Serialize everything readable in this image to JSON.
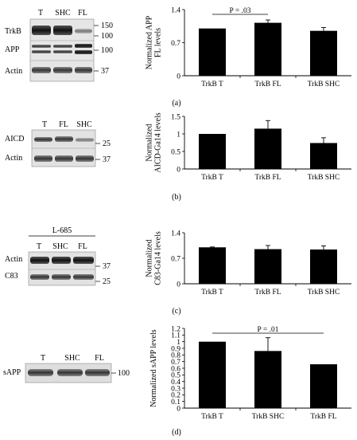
{
  "panels": [
    {
      "label": "(a)",
      "blot": {
        "lanes": [
          "T",
          "SHC",
          "FL"
        ],
        "rows": [
          "TrkB",
          "APP",
          "Actin"
        ],
        "markers": [
          "150",
          "100",
          "100",
          "37"
        ]
      }
    },
    {
      "label": "(b)",
      "blot": {
        "lanes": [
          "T",
          "FL",
          "SHC"
        ],
        "rows": [
          "AICD",
          "Actin"
        ],
        "markers": [
          "25",
          "37"
        ]
      }
    },
    {
      "label": "(c)",
      "blot": {
        "treatment": "L-685",
        "lanes": [
          "T",
          "SHC",
          "FL"
        ],
        "rows": [
          "Actin",
          "C83"
        ],
        "markers": [
          "37",
          "25"
        ]
      }
    },
    {
      "label": "(d)",
      "blot": {
        "lanes": [
          "T",
          "SHC",
          "FL"
        ],
        "rows": [
          "sAPP"
        ],
        "markers": [
          "100"
        ]
      }
    }
  ],
  "chart_data": [
    {
      "type": "bar",
      "categories": [
        "TrkB T",
        "TrkB FL",
        "TrkB SHC"
      ],
      "values": [
        1.0,
        1.12,
        0.95
      ],
      "errors": [
        0.0,
        0.06,
        0.07
      ],
      "ylabel": "Normalized APP FL levels",
      "ylim": [
        0,
        1.4
      ],
      "yticks": [
        "0",
        "0.7",
        "1.4"
      ],
      "annotation": "P = .03",
      "annotation_span": [
        "TrkB T",
        "TrkB FL"
      ]
    },
    {
      "type": "bar",
      "categories": [
        "TrkB T",
        "TrkB FL",
        "TrkB SHC"
      ],
      "values": [
        1.0,
        1.15,
        0.74
      ],
      "errors": [
        0.0,
        0.23,
        0.15
      ],
      "ylabel": "Normalized AICD-Ga14 levels",
      "ylim": [
        0,
        1.5
      ],
      "yticks": [
        "0",
        "0.5",
        "1",
        "1.5"
      ]
    },
    {
      "type": "bar",
      "categories": [
        "TrkB T",
        "TrkB FL",
        "TrkB SHC"
      ],
      "values": [
        1.0,
        0.95,
        0.94
      ],
      "errors": [
        0.01,
        0.1,
        0.1
      ],
      "ylabel": "Normalized C83-Ga14 levels",
      "ylim": [
        0,
        1.4
      ],
      "yticks": [
        "0",
        "0.7",
        "1.4"
      ]
    },
    {
      "type": "bar",
      "categories": [
        "TrkB T",
        "TrkB SHC",
        "TrkB FL"
      ],
      "values": [
        1.0,
        0.86,
        0.66
      ],
      "errors": [
        0.0,
        0.2,
        0.0
      ],
      "ylabel": "Normalized sAPP levels",
      "ylim": [
        0,
        1.2
      ],
      "yticks": [
        "0",
        "0.1",
        "0.2",
        "0.3",
        "0.4",
        "0.5",
        "0.6",
        "0.7",
        "0.8",
        "0.9",
        "1",
        "1.1",
        "1.2"
      ],
      "annotation": "P = .01",
      "annotation_span": [
        "TrkB T",
        "TrkB FL"
      ]
    }
  ]
}
